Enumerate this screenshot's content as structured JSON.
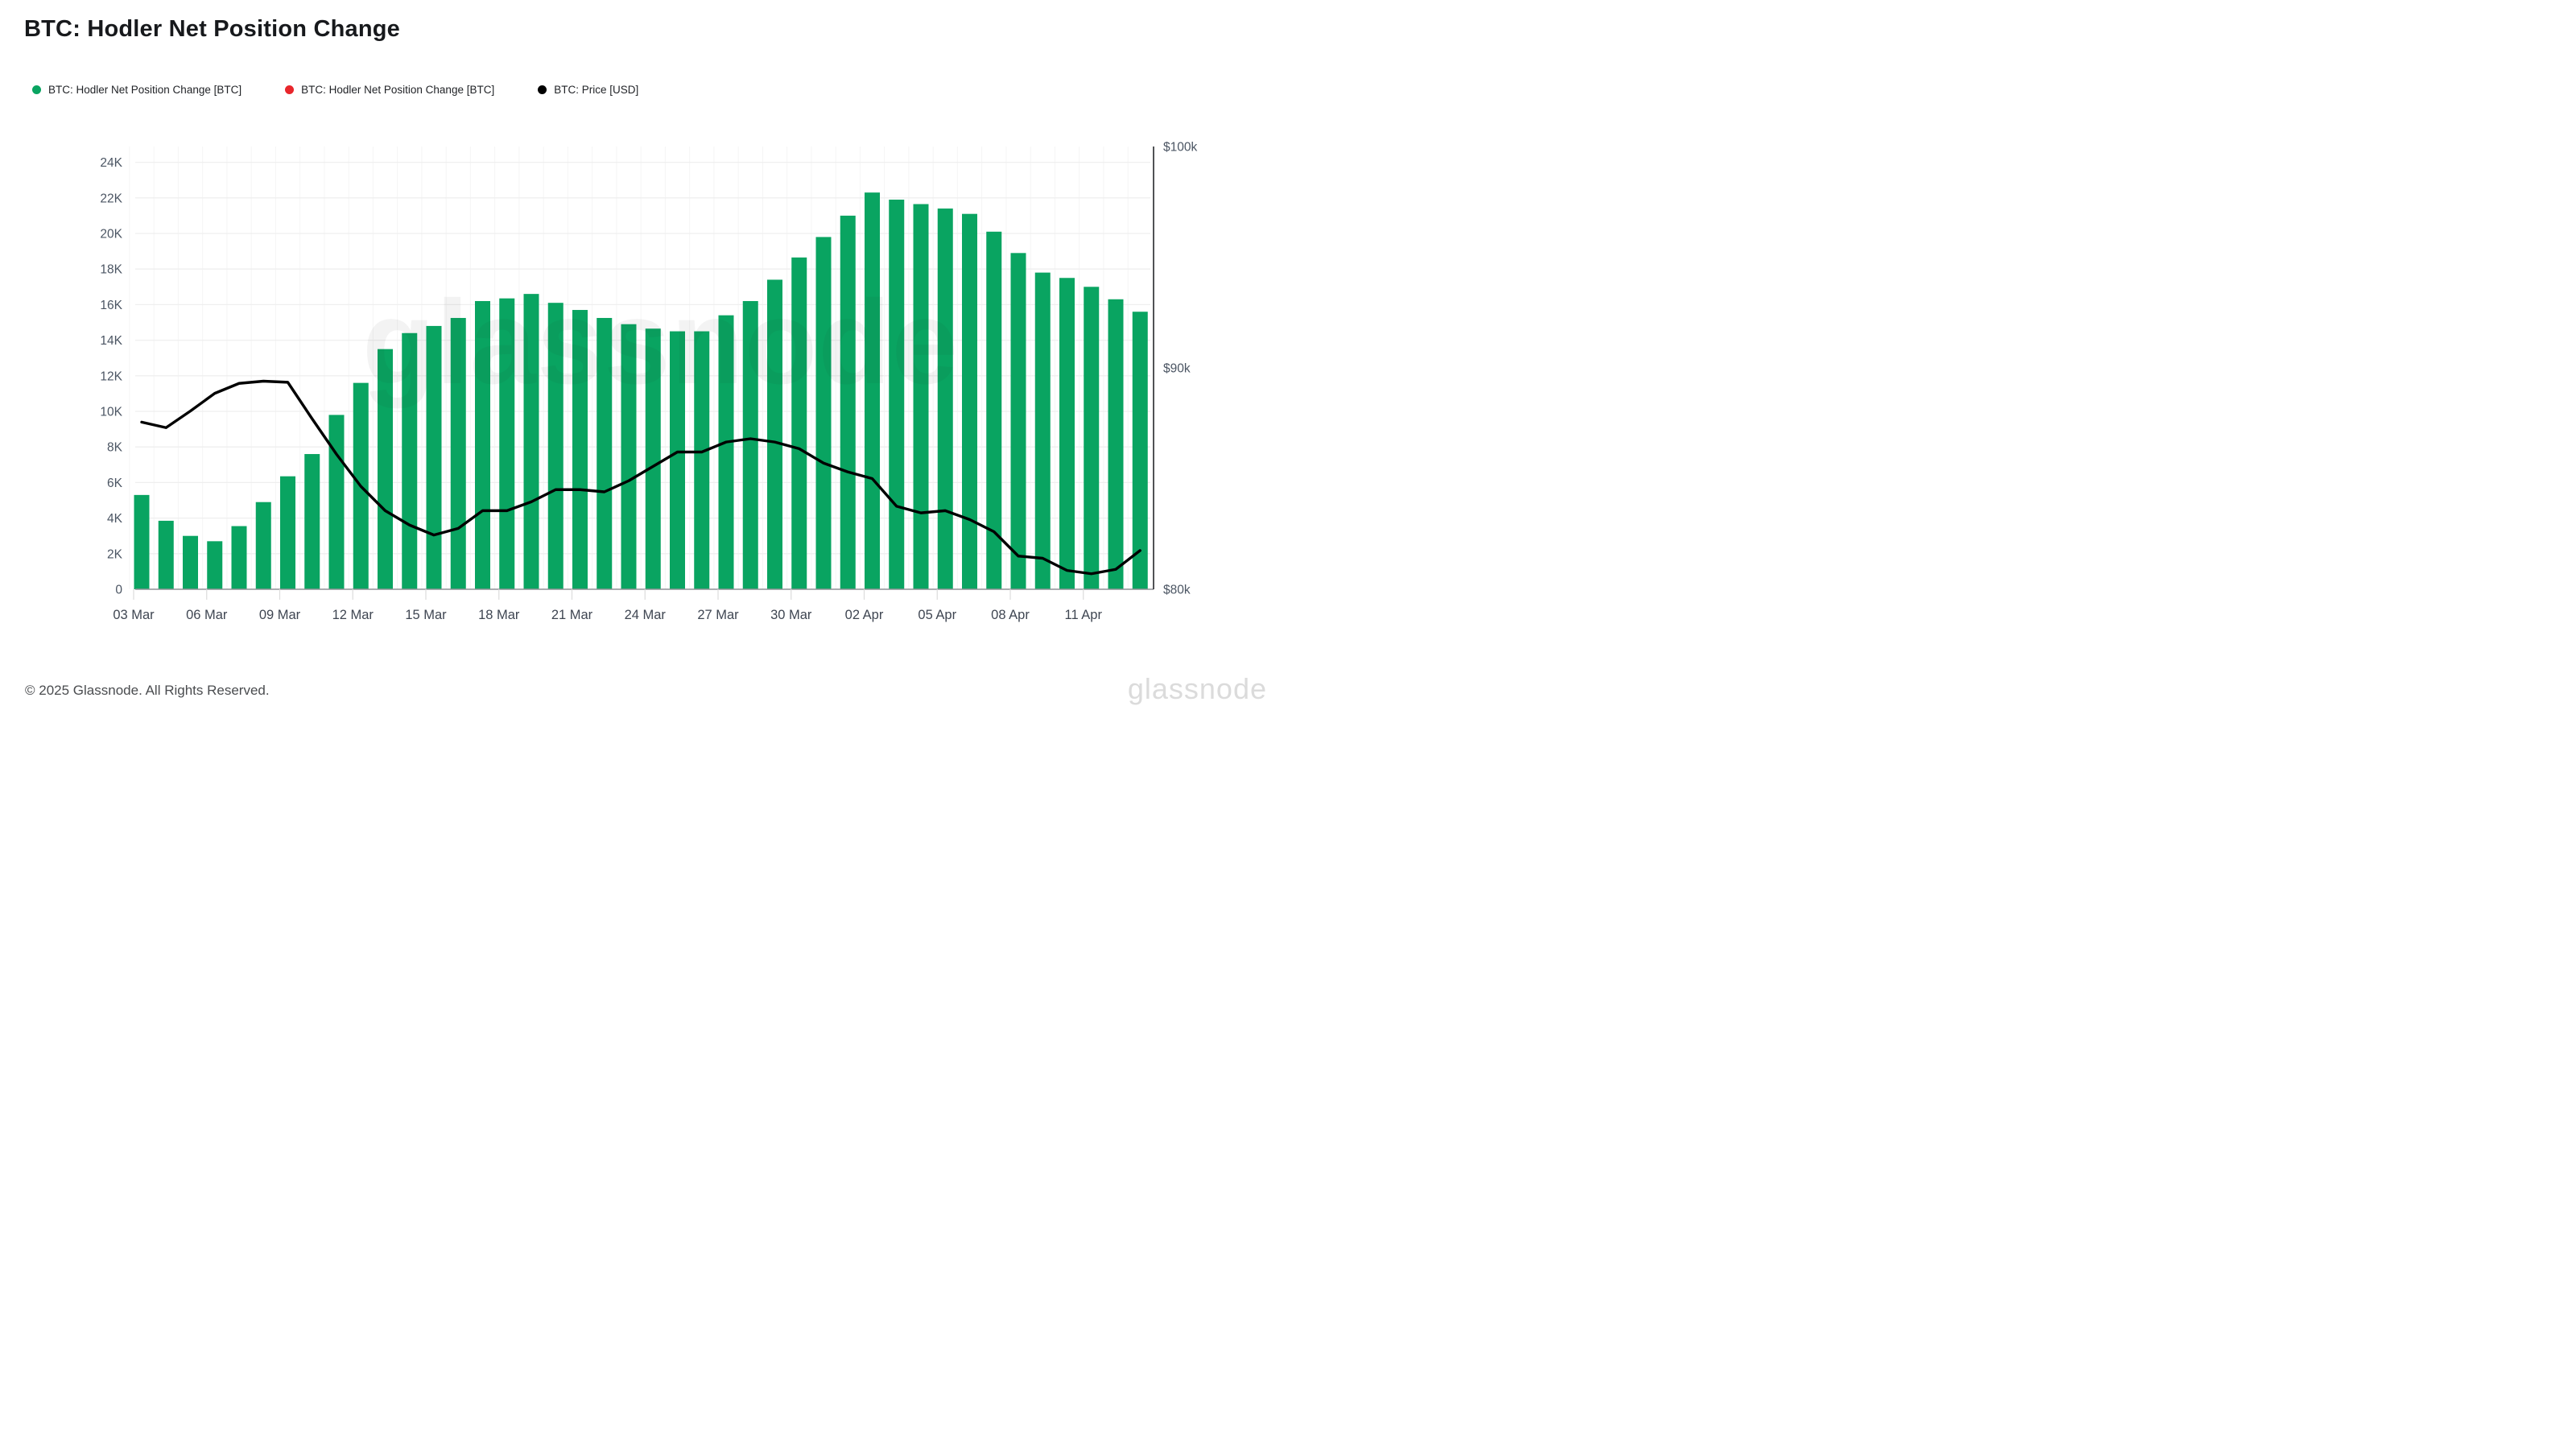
{
  "title": "BTC: Hodler Net Position Change",
  "legend": [
    {
      "label": "BTC: Hodler Net Position Change [BTC]",
      "color": "#09a461"
    },
    {
      "label": "BTC: Hodler Net Position Change [BTC]",
      "color": "#e8262b"
    },
    {
      "label": "BTC: Price [USD]",
      "color": "#000000"
    }
  ],
  "watermark": "glassnode",
  "footer": {
    "copyright": "© 2025 Glassnode. All Rights Reserved.",
    "wordmark": "glassnode"
  },
  "colors": {
    "bar_green": "#09a461",
    "price_line": "#000000",
    "legend_red": "#e8262b",
    "gridline": "#efefef",
    "day_gridline": "#f5f5f5",
    "x_axis_line": "#8f9296",
    "right_axis_line": "#25272b",
    "tick": "#dcdcdc",
    "axis_text": "#4b5563",
    "x_label_text": "#3f4652"
  },
  "chart_data": {
    "type": "bar",
    "title": "BTC: Hodler Net Position Change",
    "grid": "horizontal",
    "legend_position": "top-left",
    "dates": [
      "03 Mar",
      "04 Mar",
      "05 Mar",
      "06 Mar",
      "07 Mar",
      "08 Mar",
      "09 Mar",
      "10 Mar",
      "11 Mar",
      "12 Mar",
      "13 Mar",
      "14 Mar",
      "15 Mar",
      "16 Mar",
      "17 Mar",
      "18 Mar",
      "19 Mar",
      "20 Mar",
      "21 Mar",
      "22 Mar",
      "23 Mar",
      "24 Mar",
      "25 Mar",
      "26 Mar",
      "27 Mar",
      "28 Mar",
      "29 Mar",
      "30 Mar",
      "31 Mar",
      "01 Apr",
      "02 Apr",
      "03 Apr",
      "04 Apr",
      "05 Apr",
      "06 Apr",
      "07 Apr",
      "08 Apr",
      "09 Apr",
      "10 Apr",
      "11 Apr",
      "12 Apr",
      "13 Apr"
    ],
    "x_tick_labels": [
      "03 Mar",
      "06 Mar",
      "09 Mar",
      "12 Mar",
      "15 Mar",
      "18 Mar",
      "21 Mar",
      "24 Mar",
      "27 Mar",
      "30 Mar",
      "02 Apr",
      "05 Apr",
      "08 Apr",
      "11 Apr"
    ],
    "series": [
      {
        "name": "BTC: Hodler Net Position Change [BTC]",
        "type": "bar",
        "axis": "left",
        "color": "#09a461",
        "values_btc": [
          5300,
          3850,
          3000,
          2700,
          3550,
          4900,
          6350,
          7600,
          9800,
          11600,
          13500,
          14400,
          14800,
          15250,
          16200,
          16350,
          16600,
          16100,
          15700,
          15250,
          14900,
          14650,
          14500,
          14500,
          15400,
          16200,
          17400,
          18650,
          19800,
          21000,
          22300,
          21900,
          21650,
          21400,
          21100,
          20100,
          18900,
          17800,
          17500,
          17000,
          16300,
          15600
        ]
      },
      {
        "name": "BTC: Price [USD]",
        "type": "line",
        "axis": "right",
        "color": "#000000",
        "values_usd": [
          87550,
          87300,
          88050,
          88850,
          89300,
          89400,
          89350,
          87700,
          86100,
          84650,
          83550,
          82900,
          82450,
          82750,
          83550,
          83550,
          83950,
          84500,
          84500,
          84400,
          84900,
          85550,
          86200,
          86200,
          86650,
          86800,
          86650,
          86350,
          85700,
          85300,
          85000,
          83750,
          83450,
          83550,
          83150,
          82600,
          81500,
          81400,
          80850,
          80700,
          80900,
          81750
        ]
      }
    ],
    "left_axis": {
      "tick_labels": [
        "0",
        "2K",
        "4K",
        "6K",
        "8K",
        "10K",
        "12K",
        "14K",
        "16K",
        "18K",
        "20K",
        "22K",
        "24K"
      ],
      "tick_values": [
        0,
        2000,
        4000,
        6000,
        8000,
        10000,
        12000,
        14000,
        16000,
        18000,
        20000,
        22000,
        24000
      ],
      "range": [
        0,
        24900
      ]
    },
    "right_axis": {
      "tick_labels": [
        "$80k",
        "$90k",
        "$100k"
      ],
      "tick_values": [
        80000,
        90000,
        100000
      ],
      "range": [
        80000,
        100000
      ]
    }
  }
}
